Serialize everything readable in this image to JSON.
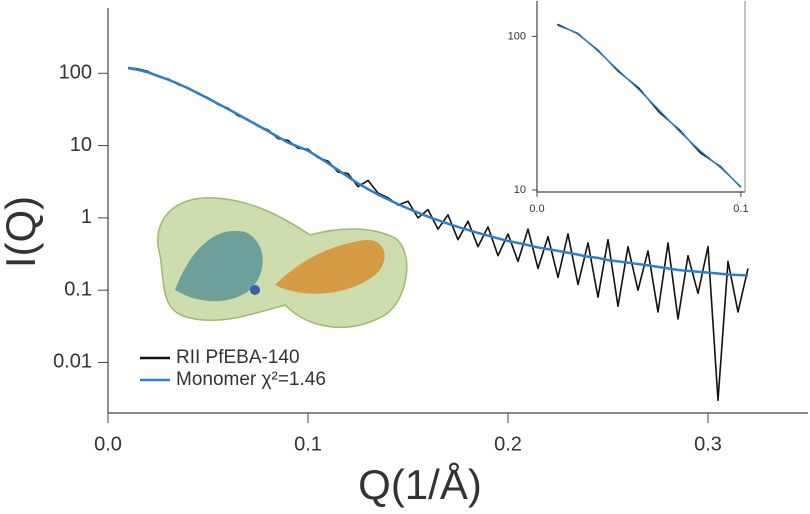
{
  "chart_data": [
    {
      "type": "line",
      "x_label": "Q(1/Å)",
      "y_label": "I(Q)",
      "log_y": true,
      "legend": "lower left",
      "xlim": [
        0,
        0.35
      ],
      "ylim": [
        0.002,
        800
      ],
      "xticks": [
        {
          "value": 0,
          "label": "0.0"
        },
        0.1,
        0.2,
        0.3
      ],
      "yticks": [
        100,
        10,
        1,
        0.1,
        0.01
      ],
      "x": [
        0.01,
        0.015,
        0.02,
        0.025,
        0.03,
        0.035,
        0.04,
        0.045,
        0.05,
        0.055,
        0.06,
        0.065,
        0.07,
        0.075,
        0.08,
        0.085,
        0.09,
        0.095,
        0.1,
        0.105,
        0.11,
        0.115,
        0.12,
        0.125,
        0.13,
        0.135,
        0.14,
        0.145,
        0.15,
        0.155,
        0.16,
        0.165,
        0.17,
        0.175,
        0.18,
        0.185,
        0.19,
        0.195,
        0.2,
        0.205,
        0.21,
        0.215,
        0.22,
        0.225,
        0.23,
        0.235,
        0.24,
        0.245,
        0.25,
        0.255,
        0.26,
        0.265,
        0.27,
        0.275,
        0.28,
        0.285,
        0.29,
        0.295,
        0.3,
        0.305,
        0.31,
        0.315,
        0.32
      ],
      "series": [
        {
          "name": "RII PfEBA-140",
          "color": "#111111",
          "width": 1.6,
          "values": [
            120,
            115,
            106,
            90,
            84,
            70,
            63,
            52,
            46,
            37,
            33,
            26,
            23,
            18.5,
            16.5,
            12.5,
            11.8,
            9.2,
            8.9,
            6.8,
            6.1,
            4.3,
            4.1,
            2.7,
            3.3,
            2.2,
            1.9,
            1.5,
            1.7,
            1.0,
            1.3,
            0.7,
            1.1,
            0.5,
            0.9,
            0.4,
            0.75,
            0.3,
            0.6,
            0.25,
            0.7,
            0.2,
            0.55,
            0.15,
            0.6,
            0.12,
            0.45,
            0.08,
            0.5,
            0.06,
            0.4,
            0.1,
            0.35,
            0.05,
            0.45,
            0.04,
            0.3,
            0.09,
            0.4,
            0.003,
            0.25,
            0.05,
            0.2
          ]
        },
        {
          "name": "Monomer χ²=1.46",
          "color": "#2f7fc8",
          "width": 2.5,
          "values": [
            118,
            112,
            103,
            92,
            82,
            72,
            62,
            53,
            45,
            38,
            32,
            27,
            22.5,
            19,
            15.8,
            13.2,
            11,
            9.7,
            8.5,
            7,
            5.7,
            4.6,
            3.7,
            3.0,
            2.5,
            2.1,
            1.8,
            1.55,
            1.35,
            1.18,
            1.04,
            0.93,
            0.83,
            0.75,
            0.68,
            0.62,
            0.57,
            0.52,
            0.48,
            0.45,
            0.42,
            0.39,
            0.37,
            0.35,
            0.33,
            0.31,
            0.29,
            0.28,
            0.26,
            0.25,
            0.24,
            0.23,
            0.22,
            0.21,
            0.2,
            0.19,
            0.185,
            0.18,
            0.175,
            0.17,
            0.165,
            0.162,
            0.16
          ]
        }
      ]
    },
    {
      "type": "line",
      "log_y": true,
      "xlim": [
        0,
        0.102
      ],
      "ylim": [
        9.7,
        170
      ],
      "xticks": [
        {
          "value": 0,
          "label": "0.0"
        },
        0.1
      ],
      "yticks": [
        100,
        10
      ],
      "x": [
        0.01,
        0.02,
        0.03,
        0.04,
        0.05,
        0.06,
        0.07,
        0.08,
        0.09,
        0.1
      ],
      "series": [
        {
          "color": "#111111",
          "width": 1.4,
          "values": [
            120,
            104,
            81,
            59,
            46,
            32,
            24.5,
            17.5,
            14.2,
            10.4
          ]
        },
        {
          "color": "#2f7fc8",
          "width": 1.4,
          "values": [
            118,
            105,
            80,
            60,
            45,
            33,
            24,
            18,
            14,
            10.5
          ]
        }
      ]
    }
  ]
}
